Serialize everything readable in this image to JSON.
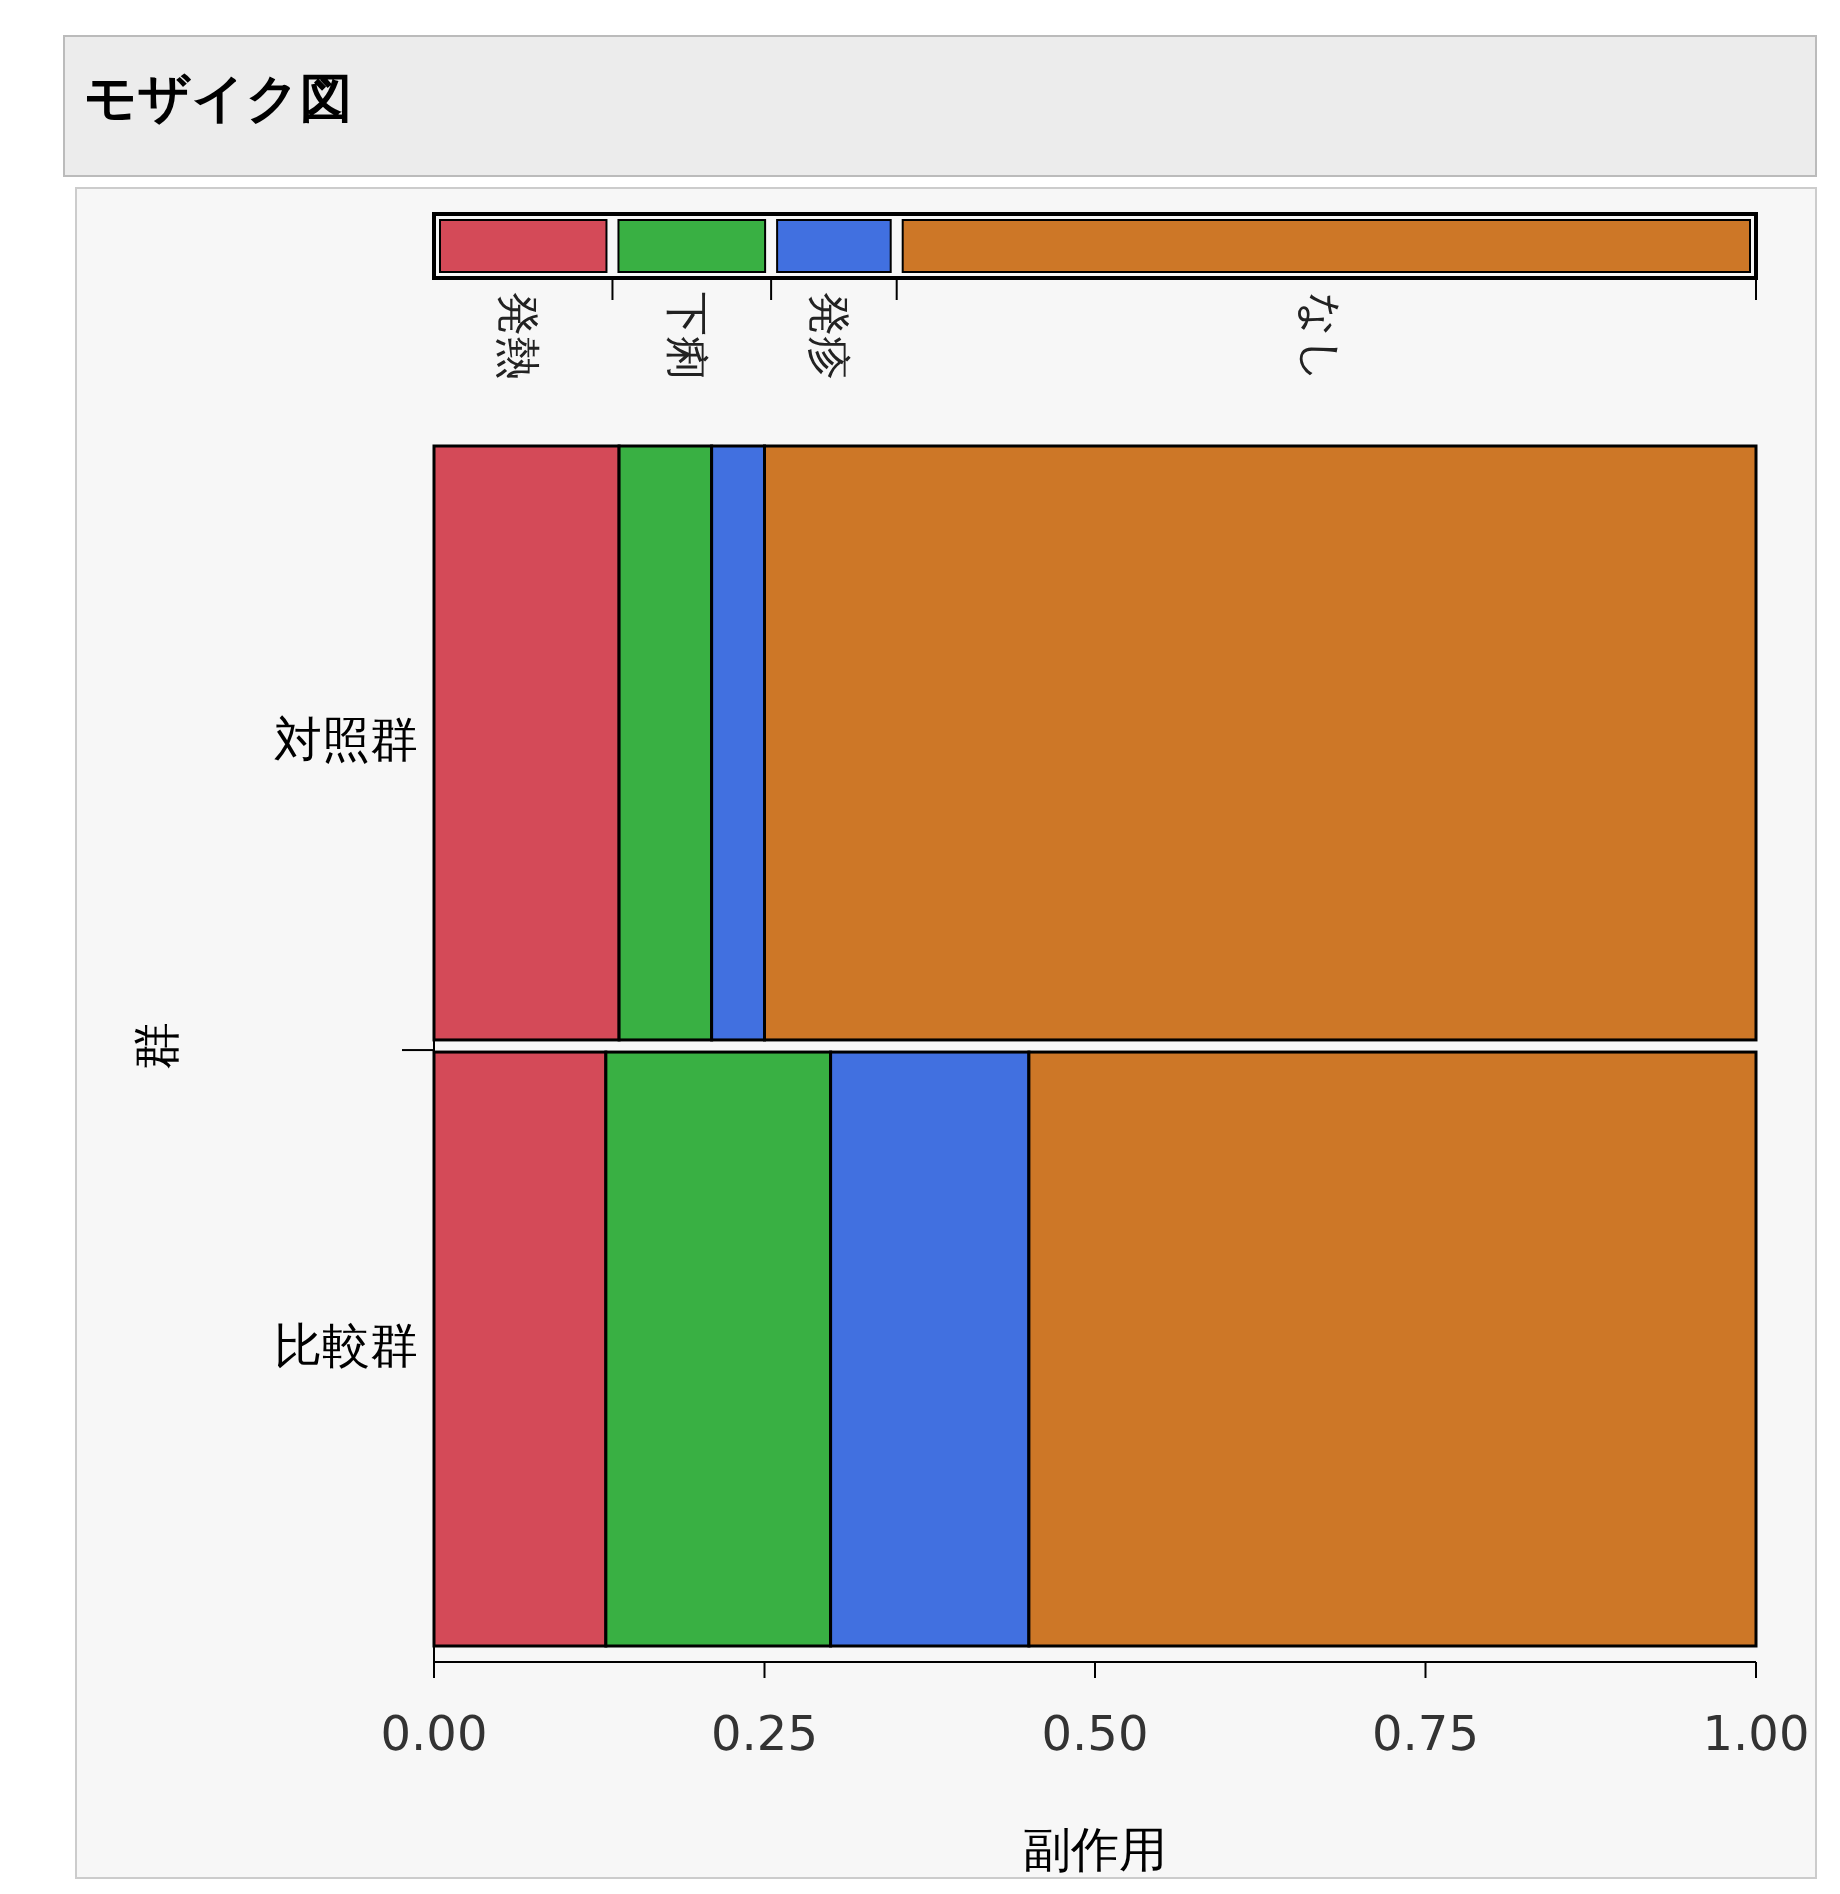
{
  "chart_data": {
    "type": "bar",
    "title": "モザイク図",
    "orientation": "horizontal",
    "stacked": true,
    "xlabel": "副作用",
    "ylabel": "群",
    "legend": "top",
    "categories": [
      "対照群",
      "比較群"
    ],
    "xlim": [
      0,
      1
    ],
    "xticks": [
      {
        "value": 0,
        "label": "0.00"
      },
      {
        "value": 0.25,
        "label": "0.25"
      },
      {
        "value": 0.5,
        "label": "0.50"
      },
      {
        "value": 0.75,
        "label": "0.75"
      },
      {
        "value": 1,
        "label": "1.00"
      }
    ],
    "series": [
      {
        "name": "発熱",
        "color": "#d44a58",
        "values": [
          0.14,
          0.13
        ]
      },
      {
        "name": "下痢",
        "color": "#39b043",
        "values": [
          0.07,
          0.17
        ]
      },
      {
        "name": "発疹",
        "color": "#4170e0",
        "values": [
          0.04,
          0.15
        ]
      },
      {
        "name": "なし",
        "color": "#cd7727",
        "values": [
          0.75,
          0.55
        ]
      }
    ]
  }
}
